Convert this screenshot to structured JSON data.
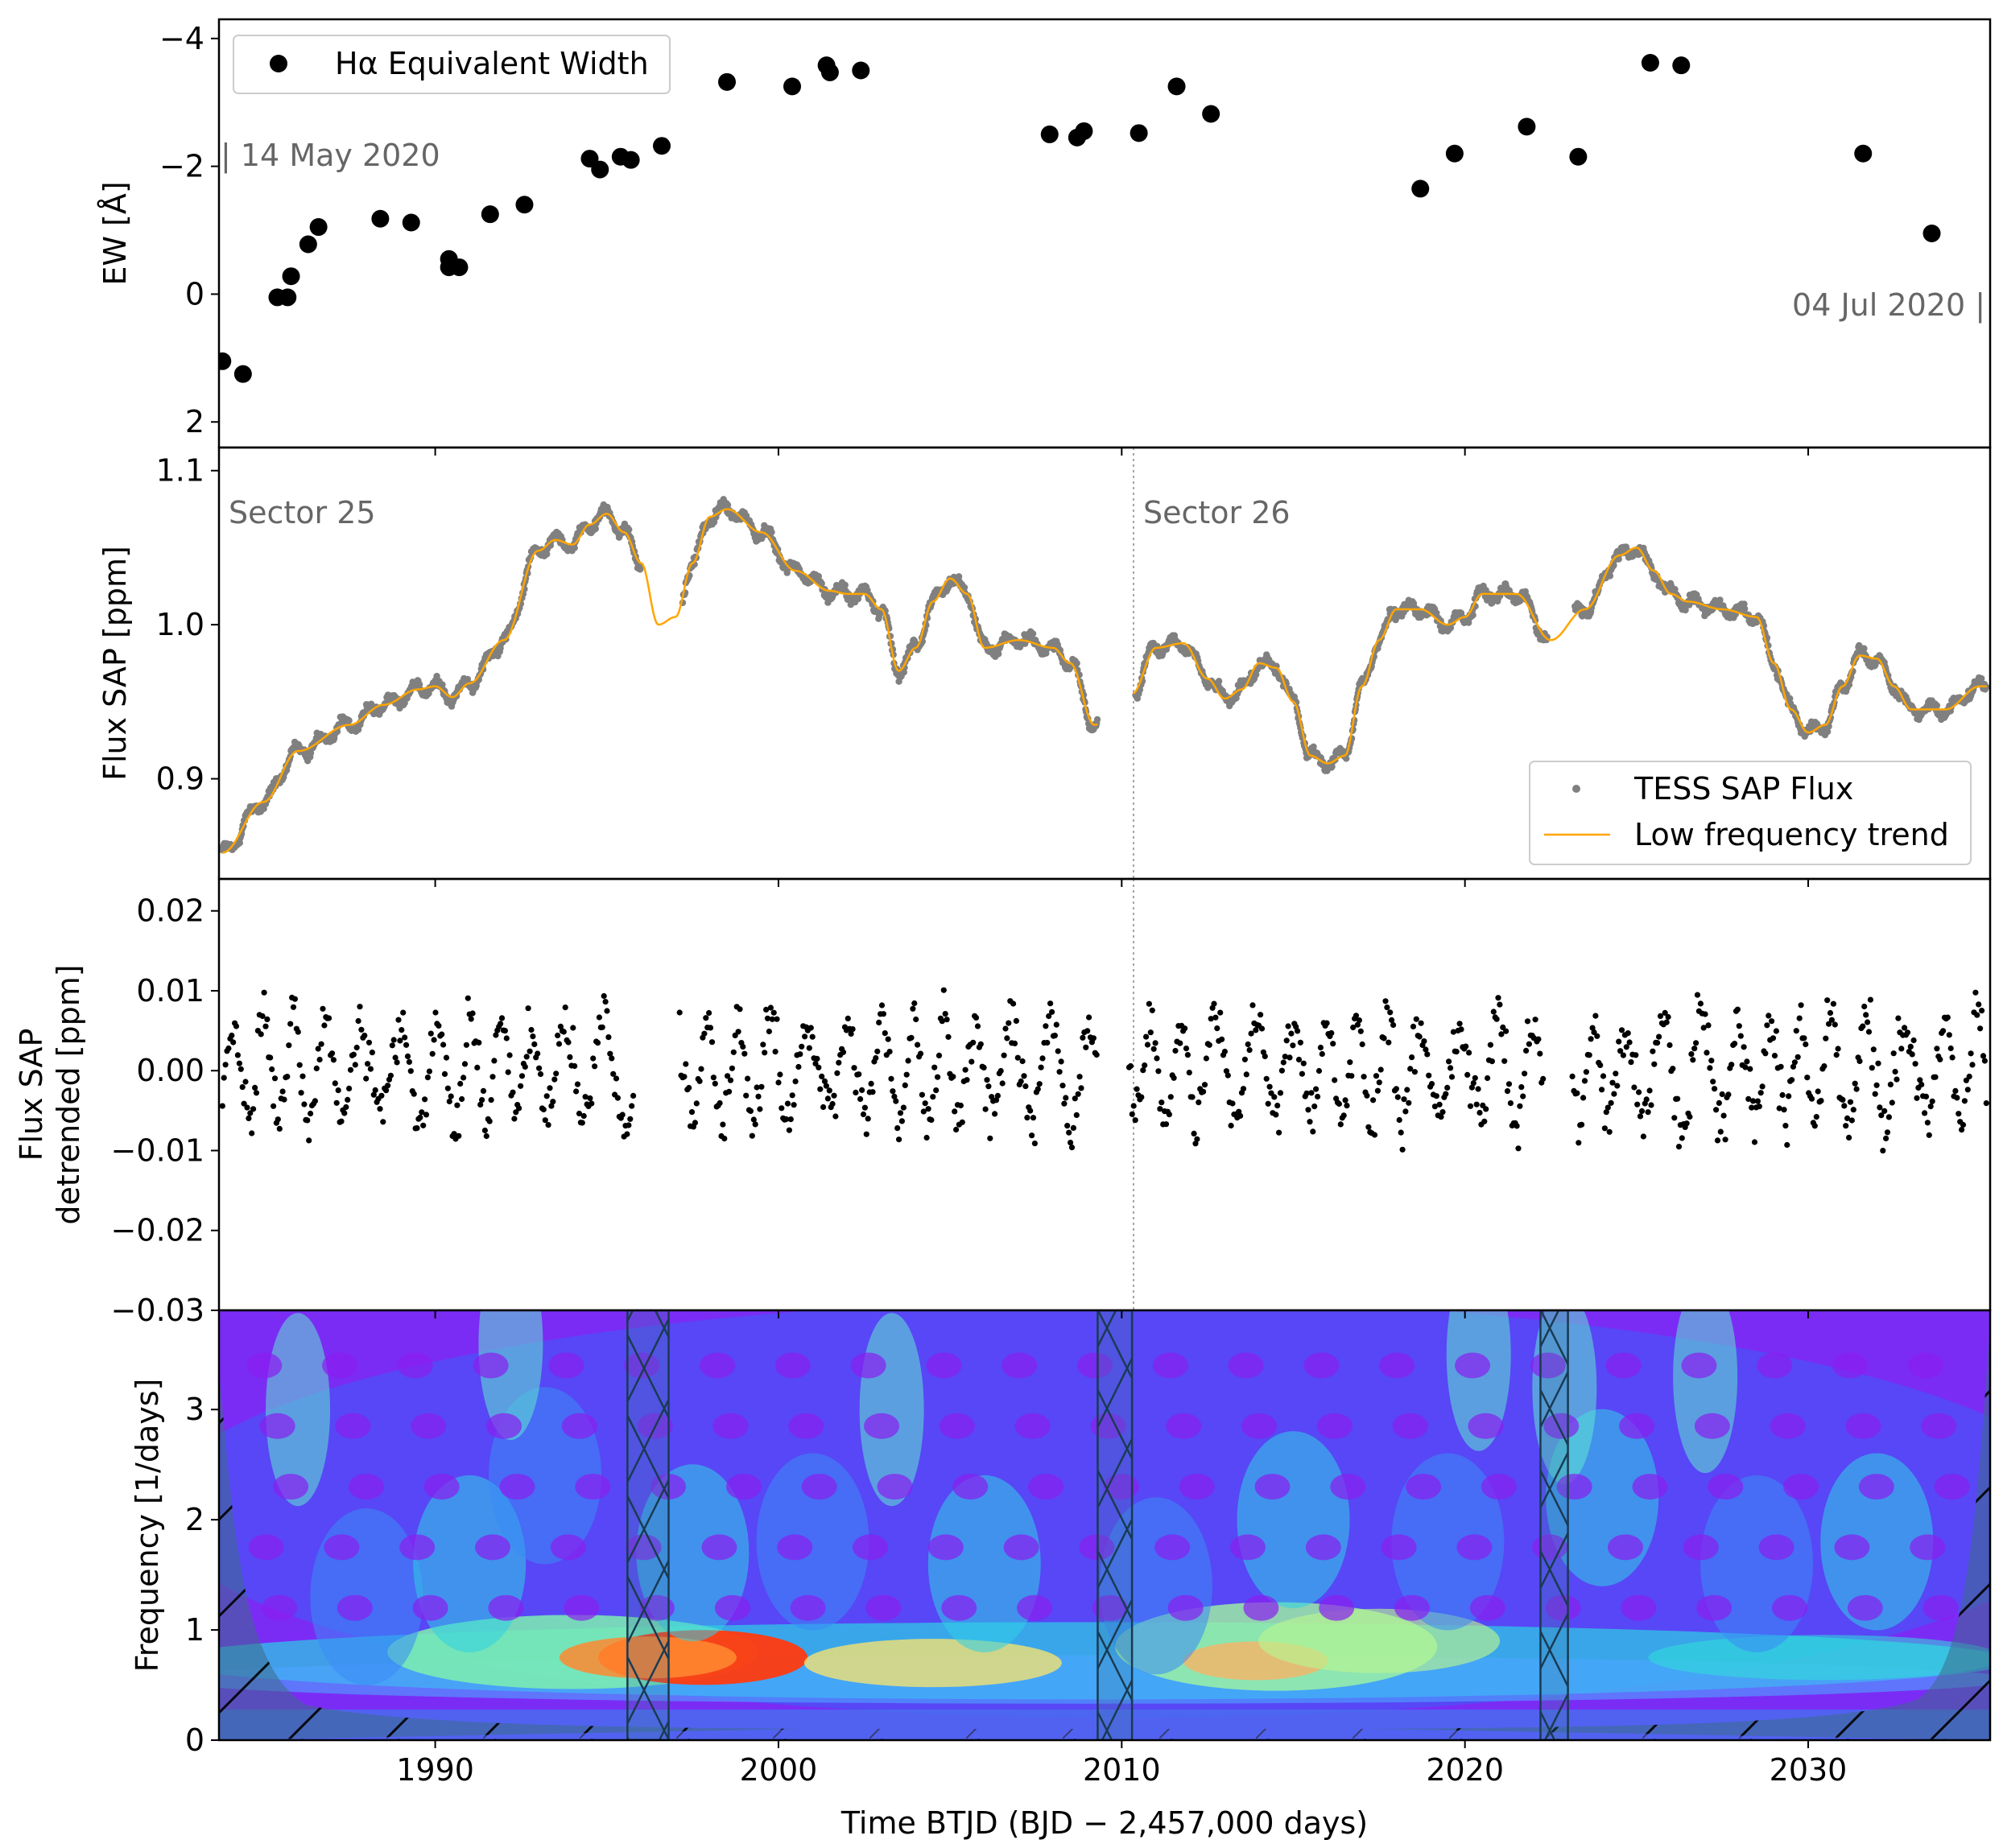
{
  "xlabel": "Time BTJD (BJD − 2,457,000 days)",
  "x_ticks": [
    "1990",
    "2000",
    "2010",
    "2020",
    "2030"
  ],
  "x_tick_values": [
    1990,
    2000,
    2010,
    2020,
    2030
  ],
  "xlim": [
    1983.7,
    2035.3
  ],
  "sector_boundary_x": 2010.3,
  "colors": {
    "ew": "#000000",
    "flux": "#808080",
    "trend": "#ffa500",
    "annotation": "#666666",
    "hatch": "#1a3a52"
  },
  "panel1": {
    "ylabel": "EW [Å]",
    "y_ticks": [
      "−4",
      "−2",
      "0",
      "2"
    ],
    "ann_start": "| 14 May 2020",
    "ann_end": "04 Jul 2020 |",
    "legend": "Hα Equivalent Width"
  },
  "panel2": {
    "ylabel": "Flux SAP [ppm]",
    "y_ticks": [
      "0.9",
      "1.0",
      "1.1"
    ],
    "sector25": "Sector 25",
    "sector26": "Sector 26",
    "legend_flux": "TESS SAP Flux",
    "legend_trend": "Low frequency trend"
  },
  "panel3": {
    "ylabel1": "Flux SAP",
    "ylabel2": "detrended [ppm]",
    "y_ticks": [
      "0.02",
      "0.01",
      "0.00",
      "−0.01",
      "−0.02",
      "−0.03"
    ]
  },
  "panel4": {
    "ylabel": "Frequency [1/days]",
    "y_ticks": [
      "0",
      "1",
      "2",
      "3"
    ],
    "gaps": [
      [
        1995.6,
        1996.8
      ],
      [
        2009.3,
        2010.3
      ],
      [
        2022.2,
        2023.0
      ]
    ]
  },
  "chart_data": [
    {
      "type": "scatter",
      "ylabel": "EW [Å]",
      "ylim": [
        2.4,
        -4.3
      ],
      "inverted_y": true,
      "series": [
        {
          "name": "Hα Equivalent Width",
          "x": [
            1983.8,
            1984.4,
            1985.4,
            1985.7,
            1985.8,
            1986.3,
            1986.6,
            1988.4,
            1989.3,
            1990.4,
            1990.4,
            1990.7,
            1991.6,
            1992.6,
            1994.5,
            1994.8,
            1995.4,
            1995.7,
            1996.6,
            1998.5,
            2000.4,
            2001.4,
            2001.5,
            2002.4,
            2007.9,
            2008.7,
            2008.9,
            2010.5,
            2011.6,
            2012.6,
            2018.7,
            2019.7,
            2021.8,
            2023.3,
            2025.4,
            2026.3,
            2031.6,
            2033.6
          ],
          "y": [
            1.05,
            1.25,
            0.05,
            0.05,
            -0.28,
            -0.78,
            -1.05,
            -1.18,
            -1.12,
            -0.55,
            -0.42,
            -0.42,
            -1.25,
            -1.4,
            -2.12,
            -1.95,
            -2.15,
            -2.1,
            -2.32,
            -3.32,
            -3.25,
            -3.58,
            -3.47,
            -3.5,
            -2.5,
            -2.45,
            -2.55,
            -2.52,
            -3.25,
            -2.82,
            -1.65,
            -2.2,
            -2.62,
            -2.15,
            -3.62,
            -3.58,
            -2.2,
            -0.95
          ]
        }
      ],
      "legend_position": "upper-left",
      "grid": false
    },
    {
      "type": "line",
      "ylabel": "Flux SAP [ppm]",
      "ylim": [
        0.835,
        1.115
      ],
      "trend": {
        "name": "Low frequency trend",
        "x": [
          1983.8,
          1985.0,
          1986.0,
          1987.5,
          1988.5,
          1989.5,
          1990.0,
          1990.5,
          1991.0,
          1992.0,
          1993.0,
          1993.5,
          1994.0,
          1994.5,
          1995.0,
          1995.5,
          1996.0,
          1996.5,
          1997.0,
          1997.5,
          1998.0,
          1998.5,
          1999.5,
          2000.5,
          2001.5,
          2002.0,
          2002.5,
          2003.0,
          2003.5,
          2004.0,
          2004.5,
          2005.0,
          2005.5,
          2006.0,
          2007.0,
          2008.0,
          2008.5,
          2009.2,
          2010.3,
          2011.0,
          2011.8,
          2012.5,
          2013.0,
          2013.5,
          2014.0,
          2014.5,
          2015.0,
          2015.5,
          2016.0,
          2016.5,
          2017.0,
          2017.5,
          2018.0,
          2018.7,
          2019.5,
          2020.0,
          2020.5,
          2021.5,
          2022.5,
          2023.5,
          2024.5,
          2025.0,
          2025.5,
          2026.0,
          2026.5,
          2027.5,
          2028.5,
          2029.0,
          2029.5,
          2030.0,
          2030.5,
          2031.0,
          2031.5,
          2032.0,
          2032.5,
          2033.0,
          2034.0,
          2035.0
        ],
        "y": [
          0.852,
          0.885,
          0.918,
          0.935,
          0.948,
          0.958,
          0.96,
          0.953,
          0.962,
          0.99,
          1.048,
          1.055,
          1.052,
          1.065,
          1.072,
          1.06,
          1.04,
          1.0,
          1.005,
          1.04,
          1.07,
          1.075,
          1.06,
          1.035,
          1.022,
          1.02,
          1.02,
          1.01,
          0.97,
          0.985,
          1.015,
          1.03,
          1.02,
          0.985,
          0.99,
          0.985,
          0.975,
          0.935,
          0.955,
          0.985,
          0.988,
          0.965,
          0.952,
          0.958,
          0.975,
          0.972,
          0.95,
          0.915,
          0.91,
          0.915,
          0.96,
          0.99,
          1.01,
          1.01,
          1.0,
          1.005,
          1.02,
          1.02,
          0.99,
          1.01,
          1.045,
          1.05,
          1.035,
          1.02,
          1.015,
          1.01,
          1.005,
          0.975,
          0.945,
          0.93,
          0.935,
          0.96,
          0.98,
          0.978,
          0.96,
          0.945,
          0.945,
          0.96
        ]
      },
      "flux": {
        "name": "TESS SAP Flux",
        "note": "dense 2-min cadence points following the trend with small deviations"
      },
      "legend_position": "lower-right",
      "grid": false
    },
    {
      "type": "scatter",
      "ylabel": "Flux SAP detrended [ppm]",
      "ylim": [
        -0.03,
        0.024
      ],
      "series": [
        {
          "name": "detrended",
          "note": "scatter of residuals roughly within ±0.015, with gaps near 1996 and 2010"
        }
      ],
      "grid": false
    },
    {
      "type": "heatmap",
      "ylabel": "Frequency [1/days]",
      "ylim": [
        0,
        3.9
      ],
      "note": "Wavelet power spectrum; strongest power near 0.75 1/days around x≈1996–1999; hatched cone of influence at both edges; hatched data gaps",
      "colormap": "rainbow",
      "grid": false
    }
  ]
}
